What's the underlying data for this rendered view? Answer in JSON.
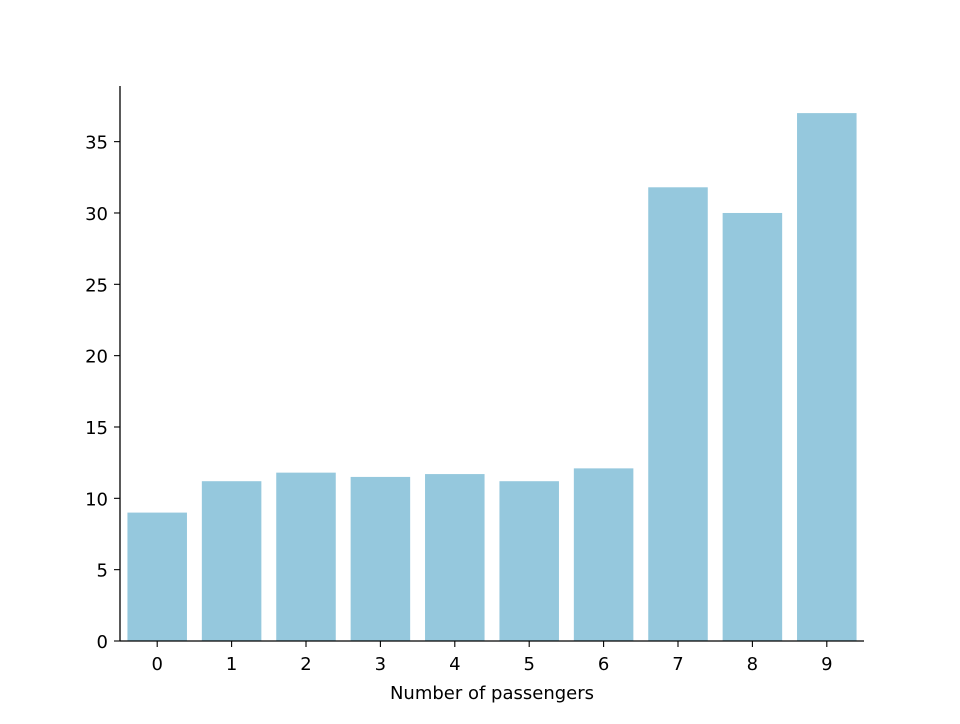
{
  "chart_data": {
    "type": "bar",
    "title": "",
    "xlabel": "Number of passengers",
    "ylabel": "",
    "categories": [
      "0",
      "1",
      "2",
      "3",
      "4",
      "5",
      "6",
      "7",
      "8",
      "9"
    ],
    "values": [
      9.0,
      11.2,
      11.8,
      11.5,
      11.7,
      11.2,
      12.1,
      31.8,
      30.0,
      37.0
    ],
    "ylim": [
      0,
      38.9
    ],
    "yticks": [
      0,
      5,
      10,
      15,
      20,
      25,
      30,
      35
    ],
    "bar_color": "#95c8dd",
    "axis_color": "#000000",
    "grid": false,
    "spines": [
      "left",
      "bottom"
    ]
  }
}
